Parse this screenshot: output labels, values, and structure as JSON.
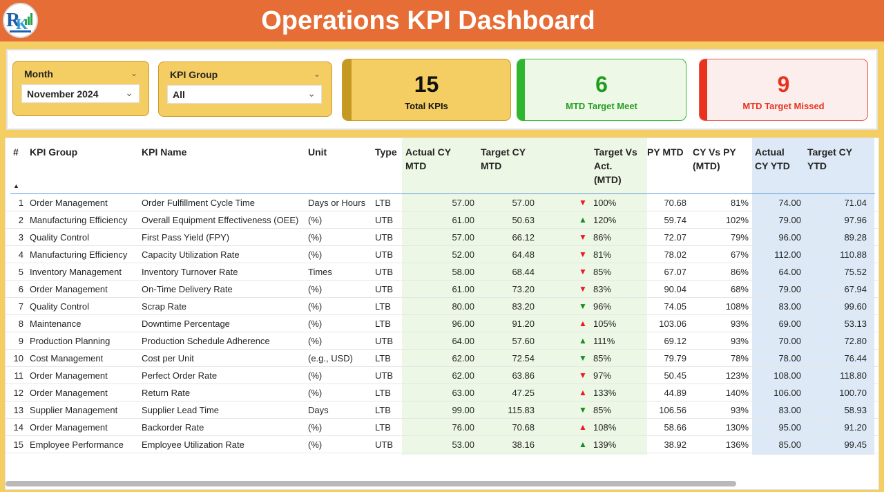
{
  "header": {
    "title": "Operations KPI Dashboard",
    "logo_icon": "rk-logo-icon"
  },
  "filters": {
    "month": {
      "label": "Month",
      "value": "November 2024"
    },
    "kpi_group": {
      "label": "KPI Group",
      "value": "All"
    }
  },
  "cards": {
    "total": {
      "value": "15",
      "caption": "Total KPIs"
    },
    "meet": {
      "value": "6",
      "caption": "MTD Target Meet"
    },
    "missed": {
      "value": "9",
      "caption": "MTD Target Missed"
    }
  },
  "colors": {
    "header": "#e76d36",
    "accent": "#f4cd63",
    "up": "#1a8a1a",
    "down": "#e81c1c",
    "mtd_col": "#edf7e6",
    "ytd_col": "#dde9f7"
  },
  "table": {
    "headers": {
      "num": "#",
      "group": "KPI Group",
      "name": "KPI Name",
      "unit": "Unit",
      "type": "Type",
      "actual_mtd_1": "Actual CY",
      "actual_mtd_2": "MTD",
      "target_mtd_1": "Target CY",
      "target_mtd_2": "MTD",
      "tva_1": "Target Vs",
      "tva_2": "Act.",
      "tva_3": "(MTD)",
      "py_mtd": "PY MTD",
      "cyvpy_1": "CY Vs PY",
      "cyvpy_2": "(MTD)",
      "actual_ytd_1": "Actual",
      "actual_ytd_2": "CY YTD",
      "target_ytd_1": "Target CY",
      "target_ytd_2": "YTD"
    },
    "rows": [
      {
        "num": "1",
        "group": "Order Management",
        "name": "Order Fulfillment Cycle Time",
        "unit": "Days or Hours",
        "type": "LTB",
        "actual_mtd": "57.00",
        "target_mtd": "57.00",
        "arrow": "▼",
        "dir": "down",
        "tva": "100%",
        "py_mtd": "70.68",
        "cyvpy": "81%",
        "actual_ytd": "74.00",
        "target_ytd": "71.04"
      },
      {
        "num": "2",
        "group": "Manufacturing Efficiency",
        "name": "Overall Equipment Effectiveness (OEE)",
        "unit": "(%)",
        "type": "UTB",
        "actual_mtd": "61.00",
        "target_mtd": "50.63",
        "arrow": "▲",
        "dir": "up",
        "tva": "120%",
        "py_mtd": "59.74",
        "cyvpy": "102%",
        "actual_ytd": "79.00",
        "target_ytd": "97.96"
      },
      {
        "num": "3",
        "group": "Quality Control",
        "name": "First Pass Yield (FPY)",
        "unit": "(%)",
        "type": "UTB",
        "actual_mtd": "57.00",
        "target_mtd": "66.12",
        "arrow": "▼",
        "dir": "down",
        "tva": "86%",
        "py_mtd": "72.07",
        "cyvpy": "79%",
        "actual_ytd": "96.00",
        "target_ytd": "89.28"
      },
      {
        "num": "4",
        "group": "Manufacturing Efficiency",
        "name": "Capacity Utilization Rate",
        "unit": "(%)",
        "type": "UTB",
        "actual_mtd": "52.00",
        "target_mtd": "64.48",
        "arrow": "▼",
        "dir": "down",
        "tva": "81%",
        "py_mtd": "78.02",
        "cyvpy": "67%",
        "actual_ytd": "112.00",
        "target_ytd": "110.88"
      },
      {
        "num": "5",
        "group": "Inventory Management",
        "name": "Inventory Turnover Rate",
        "unit": "Times",
        "type": "UTB",
        "actual_mtd": "58.00",
        "target_mtd": "68.44",
        "arrow": "▼",
        "dir": "down",
        "tva": "85%",
        "py_mtd": "67.07",
        "cyvpy": "86%",
        "actual_ytd": "64.00",
        "target_ytd": "75.52"
      },
      {
        "num": "6",
        "group": "Order Management",
        "name": "On-Time Delivery Rate",
        "unit": "(%)",
        "type": "UTB",
        "actual_mtd": "61.00",
        "target_mtd": "73.20",
        "arrow": "▼",
        "dir": "down",
        "tva": "83%",
        "py_mtd": "90.04",
        "cyvpy": "68%",
        "actual_ytd": "79.00",
        "target_ytd": "67.94"
      },
      {
        "num": "7",
        "group": "Quality Control",
        "name": "Scrap Rate",
        "unit": "(%)",
        "type": "LTB",
        "actual_mtd": "80.00",
        "target_mtd": "83.20",
        "arrow": "▼",
        "dir": "up",
        "tva": "96%",
        "py_mtd": "74.05",
        "cyvpy": "108%",
        "actual_ytd": "83.00",
        "target_ytd": "99.60"
      },
      {
        "num": "8",
        "group": "Maintenance",
        "name": "Downtime Percentage",
        "unit": "(%)",
        "type": "LTB",
        "actual_mtd": "96.00",
        "target_mtd": "91.20",
        "arrow": "▲",
        "dir": "down",
        "tva": "105%",
        "py_mtd": "103.06",
        "cyvpy": "93%",
        "actual_ytd": "69.00",
        "target_ytd": "53.13"
      },
      {
        "num": "9",
        "group": "Production Planning",
        "name": "Production Schedule Adherence",
        "unit": "(%)",
        "type": "UTB",
        "actual_mtd": "64.00",
        "target_mtd": "57.60",
        "arrow": "▲",
        "dir": "up",
        "tva": "111%",
        "py_mtd": "69.12",
        "cyvpy": "93%",
        "actual_ytd": "70.00",
        "target_ytd": "72.80"
      },
      {
        "num": "10",
        "group": "Cost Management",
        "name": "Cost per Unit",
        "unit": "(e.g., USD)",
        "type": "LTB",
        "actual_mtd": "62.00",
        "target_mtd": "72.54",
        "arrow": "▼",
        "dir": "up",
        "tva": "85%",
        "py_mtd": "79.79",
        "cyvpy": "78%",
        "actual_ytd": "78.00",
        "target_ytd": "76.44"
      },
      {
        "num": "11",
        "group": "Order Management",
        "name": "Perfect Order Rate",
        "unit": "(%)",
        "type": "UTB",
        "actual_mtd": "62.00",
        "target_mtd": "63.86",
        "arrow": "▼",
        "dir": "down",
        "tva": "97%",
        "py_mtd": "50.45",
        "cyvpy": "123%",
        "actual_ytd": "108.00",
        "target_ytd": "118.80"
      },
      {
        "num": "12",
        "group": "Order Management",
        "name": "Return Rate",
        "unit": "(%)",
        "type": "LTB",
        "actual_mtd": "63.00",
        "target_mtd": "47.25",
        "arrow": "▲",
        "dir": "down",
        "tva": "133%",
        "py_mtd": "44.89",
        "cyvpy": "140%",
        "actual_ytd": "106.00",
        "target_ytd": "100.70"
      },
      {
        "num": "13",
        "group": "Supplier Management",
        "name": "Supplier Lead Time",
        "unit": "Days",
        "type": "LTB",
        "actual_mtd": "99.00",
        "target_mtd": "115.83",
        "arrow": "▼",
        "dir": "up",
        "tva": "85%",
        "py_mtd": "106.56",
        "cyvpy": "93%",
        "actual_ytd": "83.00",
        "target_ytd": "58.93"
      },
      {
        "num": "14",
        "group": "Order Management",
        "name": "Backorder Rate",
        "unit": "(%)",
        "type": "LTB",
        "actual_mtd": "76.00",
        "target_mtd": "70.68",
        "arrow": "▲",
        "dir": "down",
        "tva": "108%",
        "py_mtd": "58.66",
        "cyvpy": "130%",
        "actual_ytd": "95.00",
        "target_ytd": "91.20"
      },
      {
        "num": "15",
        "group": "Employee Performance",
        "name": "Employee Utilization Rate",
        "unit": "(%)",
        "type": "UTB",
        "actual_mtd": "53.00",
        "target_mtd": "38.16",
        "arrow": "▲",
        "dir": "up",
        "tva": "139%",
        "py_mtd": "38.92",
        "cyvpy": "136%",
        "actual_ytd": "85.00",
        "target_ytd": "99.45"
      }
    ]
  }
}
